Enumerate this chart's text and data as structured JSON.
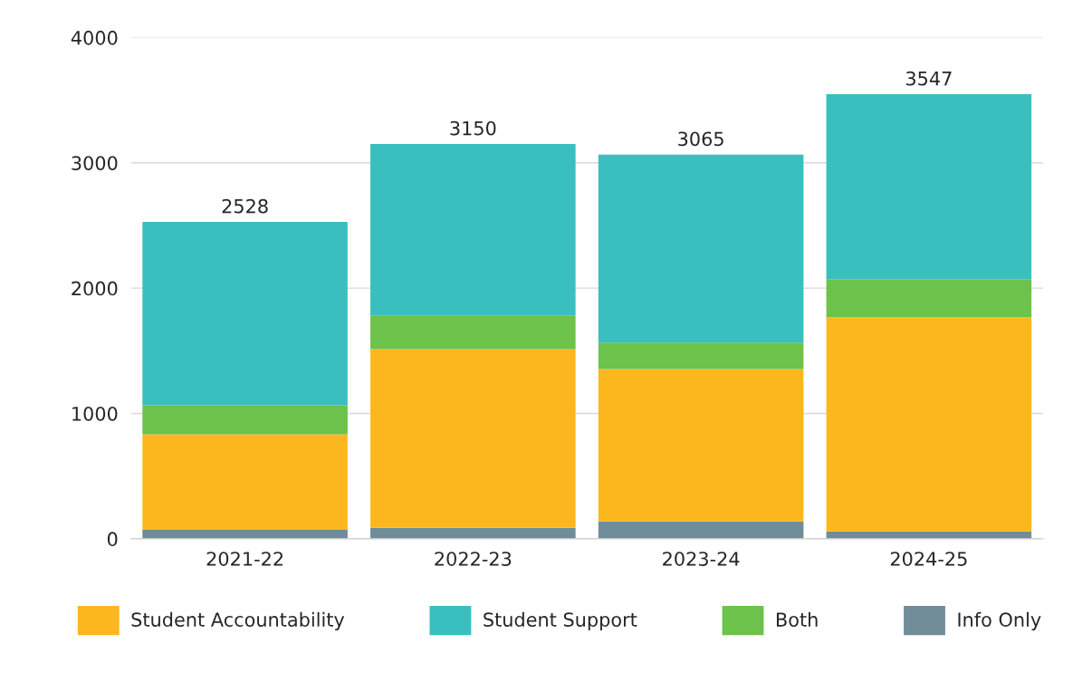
{
  "chart_data": {
    "type": "bar",
    "stacked": true,
    "categories": [
      "2021-22",
      "2022-23",
      "2023-24",
      "2024-25"
    ],
    "series": [
      {
        "name": "Info Only",
        "color": "#6f8c98",
        "values": [
          72,
          87,
          138,
          58
        ]
      },
      {
        "name": "Student Accountability",
        "color": "#fdb71e",
        "values": [
          761,
          1427,
          1217,
          1710
        ]
      },
      {
        "name": "Both",
        "color": "#6cc24a",
        "values": [
          232,
          269,
          210,
          304
        ]
      },
      {
        "name": "Student Support",
        "color": "#3abfc0",
        "values": [
          1463,
          1367,
          1500,
          1475
        ]
      }
    ],
    "totals": [
      "2528",
      "3150",
      "3065",
      "3547"
    ],
    "ylim": [
      0,
      4000
    ],
    "yticks": [
      0,
      1000,
      2000,
      3000,
      4000
    ],
    "grid": "y",
    "legend": "bottom"
  }
}
